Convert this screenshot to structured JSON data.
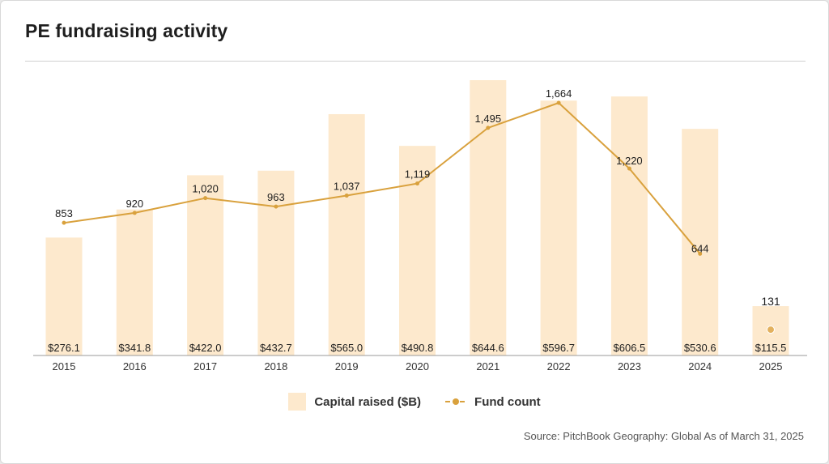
{
  "title": "PE fundraising activity",
  "source": "Source: PitchBook Geography: Global As of March 31, 2025",
  "legend": {
    "capital_label": "Capital raised ($B)",
    "count_label": "Fund count"
  },
  "colors": {
    "bar": "#fde9cd",
    "line": "#d9a13d",
    "marker_face": "#e3b15e",
    "text": "#1e1e1e",
    "axis": "#9a9a9a"
  },
  "chart_data": {
    "type": "bar",
    "categories": [
      "2015",
      "2016",
      "2017",
      "2018",
      "2019",
      "2020",
      "2021",
      "2022",
      "2023",
      "2024",
      "2025"
    ],
    "series": [
      {
        "name": "Capital raised ($B)",
        "type": "bar",
        "values": [
          276.1,
          341.8,
          422.0,
          432.7,
          565.0,
          490.8,
          644.6,
          596.7,
          606.5,
          530.6,
          115.5
        ],
        "labels": [
          "$276.1",
          "$341.8",
          "$422.0",
          "$432.7",
          "$565.0",
          "$490.8",
          "$644.6",
          "$596.7",
          "$606.5",
          "$530.6",
          "$115.5"
        ]
      },
      {
        "name": "Fund count",
        "type": "line",
        "values": [
          853,
          920,
          1020,
          963,
          1037,
          1119,
          1495,
          1664,
          1220,
          644,
          131
        ],
        "labels": [
          "853",
          "920",
          "1,020",
          "963",
          "1,037",
          "1,119",
          "1,495",
          "1,664",
          "1,220",
          "644",
          "131"
        ],
        "connected_through": "2024"
      }
    ],
    "grid": false,
    "legend_placement": "bottom-center"
  }
}
